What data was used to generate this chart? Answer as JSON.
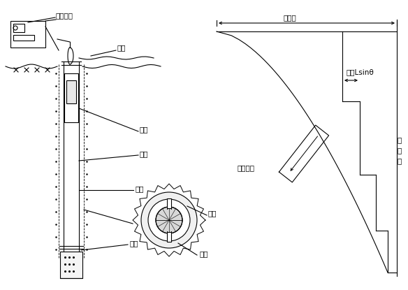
{
  "bg_color": "#ffffff",
  "line_color": "#000000",
  "fig_width": 5.84,
  "fig_height": 4.15,
  "dpi": 100,
  "labels": {
    "reading_device": "测读设备",
    "cable": "电缆",
    "probe": "测头",
    "borehole": "钻孔",
    "guide_tube": "导管",
    "backfill": "回填",
    "guide_slot": "导槽",
    "guide_wheel": "导轮",
    "total_displacement": "总位移",
    "displacement": "位移Lsinθ",
    "reading_interval": "测读间距",
    "baseline_1": "原",
    "baseline_2": "准",
    "baseline_3": "线"
  }
}
